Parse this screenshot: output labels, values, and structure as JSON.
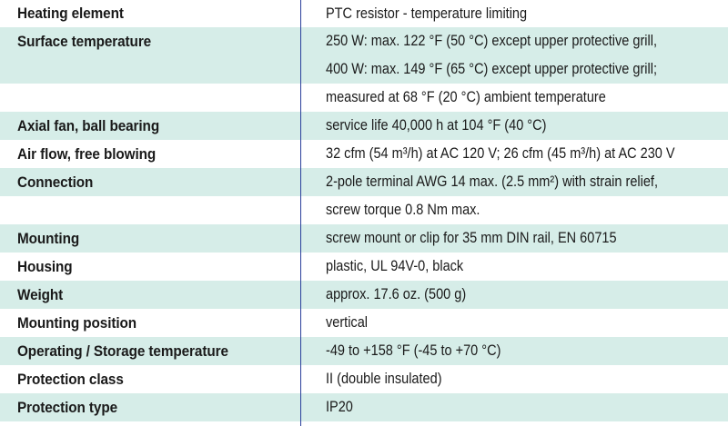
{
  "rows": [
    {
      "label": "Heating element",
      "value": "PTC resistor - temperature limiting"
    },
    {
      "label": "Surface temperature",
      "value": "250 W: max. 122 °F (50 °C) except upper protective grill,"
    },
    {
      "label": "",
      "value": "400 W: max. 149 °F (65 °C) except upper protective grill;"
    },
    {
      "label": "",
      "value": "measured at 68 °F (20 °C) ambient temperature"
    },
    {
      "label": "Axial fan, ball bearing",
      "value": "service life 40,000 h at 104 °F (40 °C)"
    },
    {
      "label": "Air flow, free blowing",
      "value": "32 cfm (54 m³/h) at AC 120 V; 26 cfm (45 m³/h) at AC 230 V"
    },
    {
      "label": "Connection",
      "value": "2-pole terminal AWG 14 max. (2.5 mm²) with strain relief,"
    },
    {
      "label": "",
      "value": "screw torque 0.8 Nm max."
    },
    {
      "label": "Mounting",
      "value": "screw mount or clip for 35 mm DIN rail, EN 60715"
    },
    {
      "label": "Housing",
      "value": "plastic, UL 94V-0, black"
    },
    {
      "label": "Weight",
      "value": "approx. 17.6 oz. (500 g)"
    },
    {
      "label": "Mounting position",
      "value": "vertical"
    },
    {
      "label": "Operating / Storage temperature",
      "value": "-49 to +158 °F (-45 to +70 °C)"
    },
    {
      "label": "Protection class",
      "value": "II (double insulated)"
    },
    {
      "label": "Protection type",
      "value": "IP20"
    }
  ]
}
